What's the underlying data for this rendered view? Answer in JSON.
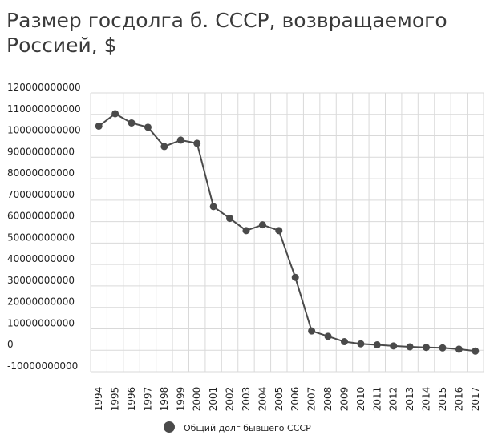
{
  "chart_data": {
    "type": "line",
    "title": "Размер госдолга б. СССР, возвращаемого Россией, $",
    "xlabel": "",
    "ylabel": "",
    "ylim": [
      -10000000000,
      120000000000
    ],
    "y_ticks": [
      120000000000,
      110000000000,
      100000000000,
      90000000000,
      80000000000,
      70000000000,
      60000000000,
      50000000000,
      40000000000,
      30000000000,
      20000000000,
      10000000000,
      0,
      -10000000000
    ],
    "y_tick_labels": [
      "120000000000",
      "110000000000",
      "100000000000",
      "90000000000",
      "80000000000",
      "70000000000",
      "60000000000",
      "50000000000",
      "40000000000",
      "30000000000",
      "20000000000",
      "10000000000",
      "0",
      "-10000000000"
    ],
    "categories": [
      "1994",
      "1995",
      "1996",
      "1997",
      "1998",
      "1999",
      "2000",
      "2001",
      "2002",
      "2003",
      "2004",
      "2005",
      "2006",
      "2007",
      "2008",
      "2009",
      "2010",
      "2011",
      "2012",
      "2013",
      "2014",
      "2015",
      "2016",
      "2017"
    ],
    "series": [
      {
        "name": "Общий долг бывшего СССР",
        "color": "#4a4a4a",
        "values": [
          104500000000,
          110300000000,
          106000000000,
          104000000000,
          95000000000,
          98000000000,
          96500000000,
          67000000000,
          61500000000,
          55800000000,
          58500000000,
          55800000000,
          34000000000,
          9000000000,
          6500000000,
          4000000000,
          3000000000,
          2500000000,
          2000000000,
          1600000000,
          1300000000,
          1100000000,
          500000000,
          -400000000
        ]
      }
    ],
    "grid": true,
    "legend_position": "bottom"
  }
}
